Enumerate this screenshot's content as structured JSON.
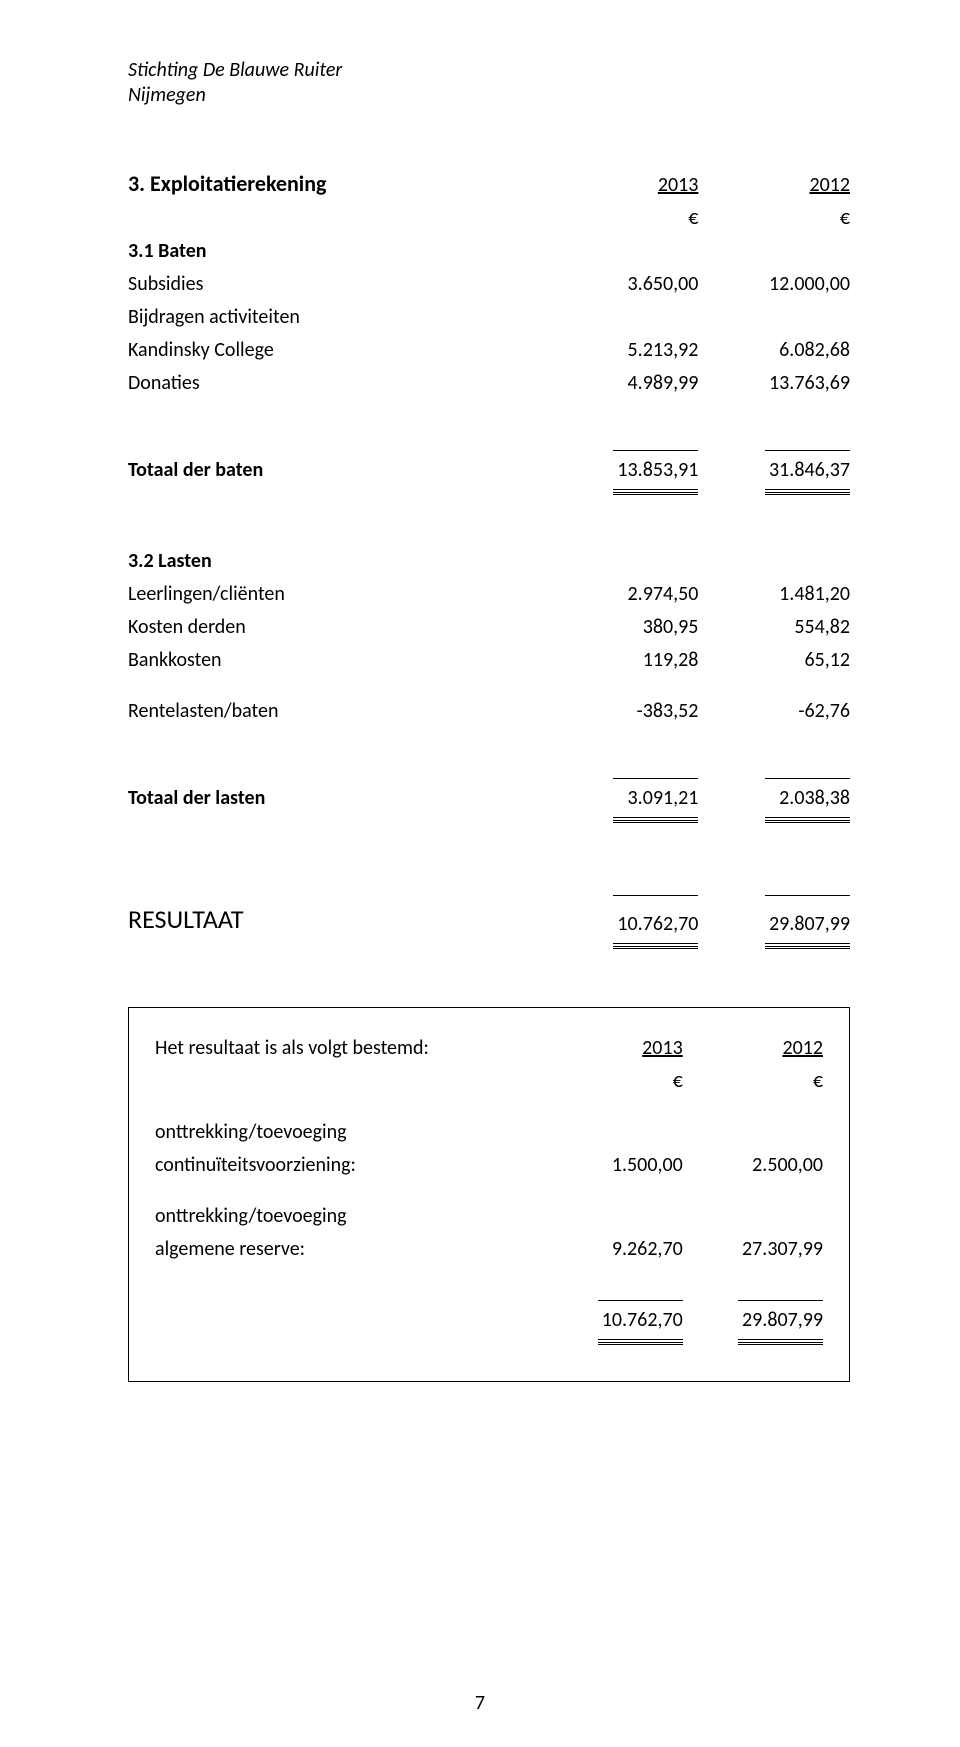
{
  "header": {
    "org_line1": "Stichting De Blauwe Ruiter",
    "org_line2": "Nijmegen"
  },
  "main": {
    "section_title": "3. Exploitatierekening",
    "year_a": "2013",
    "year_b": "2012",
    "currency": "€",
    "baten": {
      "title": "3.1 Baten",
      "rows": [
        {
          "label": "Subsidies",
          "a": "3.650,00",
          "b": "12.000,00"
        },
        {
          "label": "Bijdragen activiteiten",
          "a": "",
          "b": ""
        },
        {
          "label": "Kandinsky College",
          "a": "5.213,92",
          "b": "6.082,68"
        },
        {
          "label": "Donaties",
          "a": "4.989,99",
          "b": "13.763,69"
        }
      ],
      "total_label": "Totaal der baten",
      "total_a": "13.853,91",
      "total_b": "31.846,37"
    },
    "lasten": {
      "title": "3.2 Lasten",
      "rows": [
        {
          "label": "Leerlingen/cliënten",
          "a": "2.974,50",
          "b": "1.481,20"
        },
        {
          "label": "Kosten derden",
          "a": "380,95",
          "b": "554,82"
        },
        {
          "label": "Bankkosten",
          "a": "119,28",
          "b": "65,12"
        }
      ],
      "rente_label": "Rentelasten/baten",
      "rente_a": "-383,52",
      "rente_b": "-62,76",
      "total_label": "Totaal der lasten",
      "total_a": "3.091,21",
      "total_b": "2.038,38"
    },
    "result": {
      "label": "RESULTAAT",
      "a": "10.762,70",
      "b": "29.807,99"
    }
  },
  "box": {
    "title": "Het resultaat is als volgt bestemd:",
    "year_a": "2013",
    "year_b": "2012",
    "currency": "€",
    "lines": [
      {
        "l1": "onttrekking/toevoeging",
        "l2": "continuïteitsvoorziening:",
        "a": "1.500,00",
        "b": "2.500,00"
      },
      {
        "l1": "onttrekking/toevoeging",
        "l2": "algemene reserve:",
        "a": "9.262,70",
        "b": "27.307,99"
      }
    ],
    "total_a": "10.762,70",
    "total_b": "29.807,99"
  },
  "page_number": "7"
}
